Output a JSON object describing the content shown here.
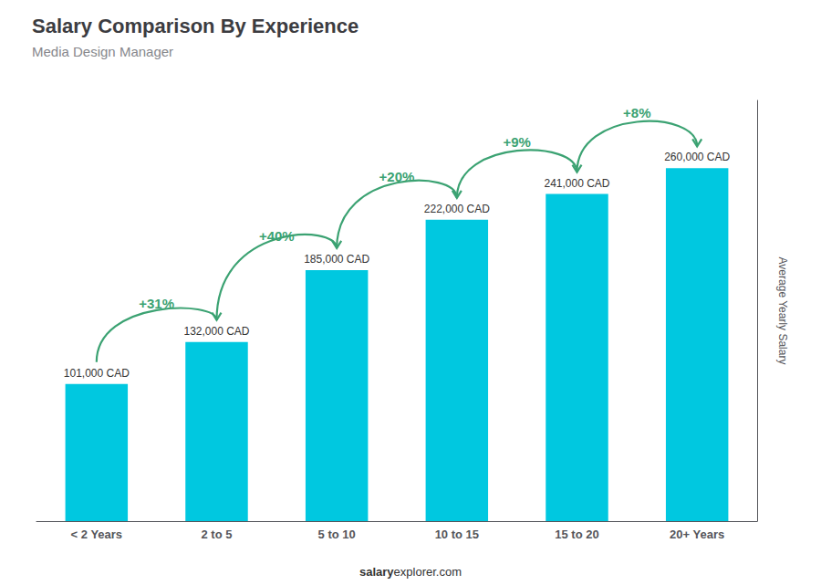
{
  "chart_data": {
    "type": "bar",
    "title": "Salary Comparison By Experience",
    "subtitle": "Media Design Manager",
    "categories": [
      "< 2 Years",
      "2 to 5",
      "5 to 10",
      "10 to 15",
      "15 to 20",
      "20+ Years"
    ],
    "values": [
      101000,
      132000,
      185000,
      222000,
      241000,
      260000
    ],
    "value_labels": [
      "101,000 CAD",
      "132,000 CAD",
      "185,000 CAD",
      "222,000 CAD",
      "241,000 CAD",
      "260,000 CAD"
    ],
    "data_labels": true,
    "color": "#00c8e0",
    "ylabel": "Average Yearly Salary",
    "ylim": [
      0,
      310000
    ],
    "tick_labels": "x",
    "grid": false,
    "annotations": [
      {
        "from": "< 2 Years",
        "to": "2 to 5",
        "text": "+31%"
      },
      {
        "from": "2 to 5",
        "to": "5 to 10",
        "text": "+40%"
      },
      {
        "from": "5 to 10",
        "to": "10 to 15",
        "text": "+20%"
      },
      {
        "from": "10 to 15",
        "to": "15 to 20",
        "text": "+9%"
      },
      {
        "from": "15 to 20",
        "to": "20+ Years",
        "text": "+8%"
      }
    ],
    "footer": [
      "salary",
      "explorer.com"
    ]
  }
}
